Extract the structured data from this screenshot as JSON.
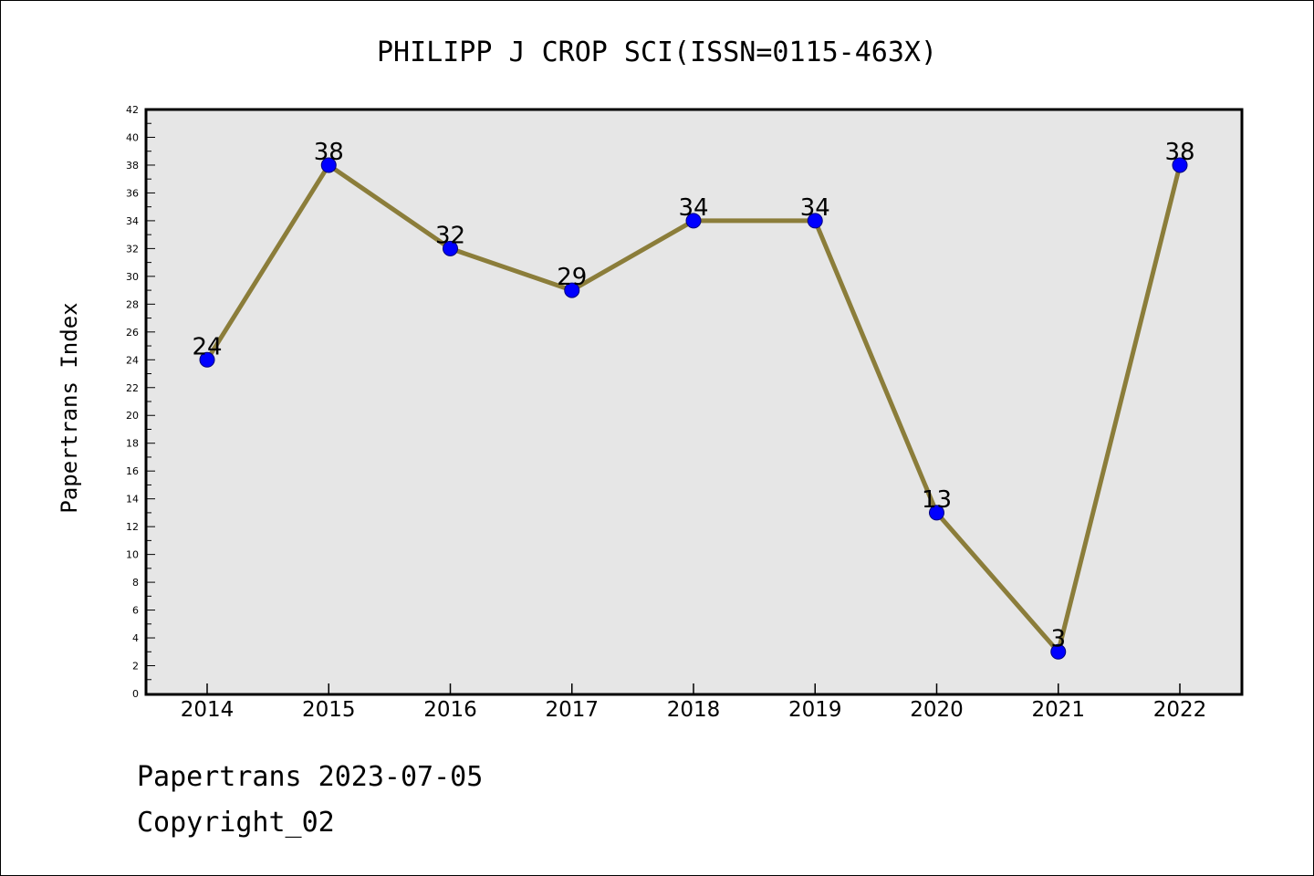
{
  "chart_data": {
    "type": "line",
    "title": "PHILIPP J CROP SCI(ISSN=0115-463X)",
    "xlabel": "",
    "ylabel": "Papertrans Index",
    "categories": [
      "2014",
      "2015",
      "2016",
      "2017",
      "2018",
      "2019",
      "2020",
      "2021",
      "2022"
    ],
    "series": [
      {
        "values": [
          24,
          38,
          32,
          29,
          34,
          34,
          13,
          3,
          38
        ]
      }
    ],
    "ylim": [
      0,
      42
    ],
    "yticks": [
      0,
      2,
      4,
      6,
      8,
      10,
      12,
      14,
      16,
      18,
      20,
      22,
      24,
      26,
      28,
      30,
      32,
      34,
      36,
      38,
      40,
      42
    ],
    "data_labels": true,
    "grid": false,
    "legend": "none",
    "colors": {
      "plot_background": "#e6e6e6",
      "line": "#8b7d3a",
      "marker": "#0000ff"
    }
  },
  "footer": {
    "line1": "Papertrans 2023-07-05",
    "line2": "Copyright_02"
  }
}
